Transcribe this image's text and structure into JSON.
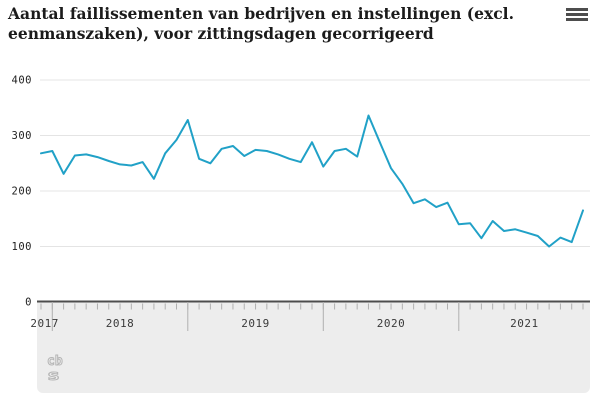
{
  "title": {
    "full": "Aantal faillissementen van bedrijven en instellingen (excl. eenmanszaken), voor zittingsdagen gecorrigeerd",
    "line1": "Aantal faillissementen van bedrijven en instellingen (excl.",
    "line2": "eenmanszaken), voor zittingsdagen gecorrigeerd"
  },
  "menu": {
    "icon": "hamburger-menu-icon"
  },
  "footer": {
    "logo": "cbs-logo",
    "logo_text_top": "cb",
    "logo_text_bottom": "s"
  },
  "colors": {
    "line": "#21a1c7",
    "grid": "#e4e4e4",
    "axis": "#4d4d4d",
    "panel": "#ededed",
    "tick": "#b0b0b0",
    "year_label": "#3a3a3a",
    "ytick_label": "#1f1f1f",
    "title": "#1b1b1b",
    "logo": "#b5b5b5"
  },
  "chart_data": {
    "type": "line",
    "title": "Aantal faillissementen van bedrijven en instellingen (excl. eenmanszaken), voor zittingsdagen gecorrigeerd",
    "xlabel": "",
    "ylabel": "",
    "ylim": [
      0,
      400
    ],
    "yticks": [
      0,
      100,
      200,
      300,
      400
    ],
    "ytick_labels": [
      "0",
      "100",
      "200",
      "300",
      "400"
    ],
    "grid": "horizontal",
    "legend": "none",
    "x_unit": "month",
    "categories": [
      "2017-12",
      "2018-01",
      "2018-02",
      "2018-03",
      "2018-04",
      "2018-05",
      "2018-06",
      "2018-07",
      "2018-08",
      "2018-09",
      "2018-10",
      "2018-11",
      "2018-12",
      "2019-01",
      "2019-02",
      "2019-03",
      "2019-04",
      "2019-05",
      "2019-06",
      "2019-07",
      "2019-08",
      "2019-09",
      "2019-10",
      "2019-11",
      "2019-12",
      "2020-01",
      "2020-02",
      "2020-03",
      "2020-04",
      "2020-05",
      "2020-06",
      "2020-07",
      "2020-08",
      "2020-09",
      "2020-10",
      "2020-11",
      "2020-12",
      "2021-01",
      "2021-02",
      "2021-03",
      "2021-04",
      "2021-05",
      "2021-06",
      "2021-07",
      "2021-08",
      "2021-09",
      "2021-10",
      "2021-11",
      "2021-12"
    ],
    "values": [
      268,
      272,
      231,
      264,
      266,
      261,
      254,
      248,
      246,
      252,
      222,
      268,
      292,
      328,
      258,
      250,
      276,
      281,
      263,
      274,
      272,
      266,
      258,
      252,
      288,
      244,
      272,
      276,
      262,
      336,
      288,
      241,
      213,
      178,
      185,
      171,
      179,
      140,
      142,
      115,
      146,
      128,
      131,
      125,
      119,
      100,
      116,
      108,
      165
    ],
    "year_labels": [
      "2017",
      "2018",
      "2019",
      "2020",
      "2021"
    ],
    "year_start_indices": [
      1,
      13,
      25,
      37
    ]
  }
}
